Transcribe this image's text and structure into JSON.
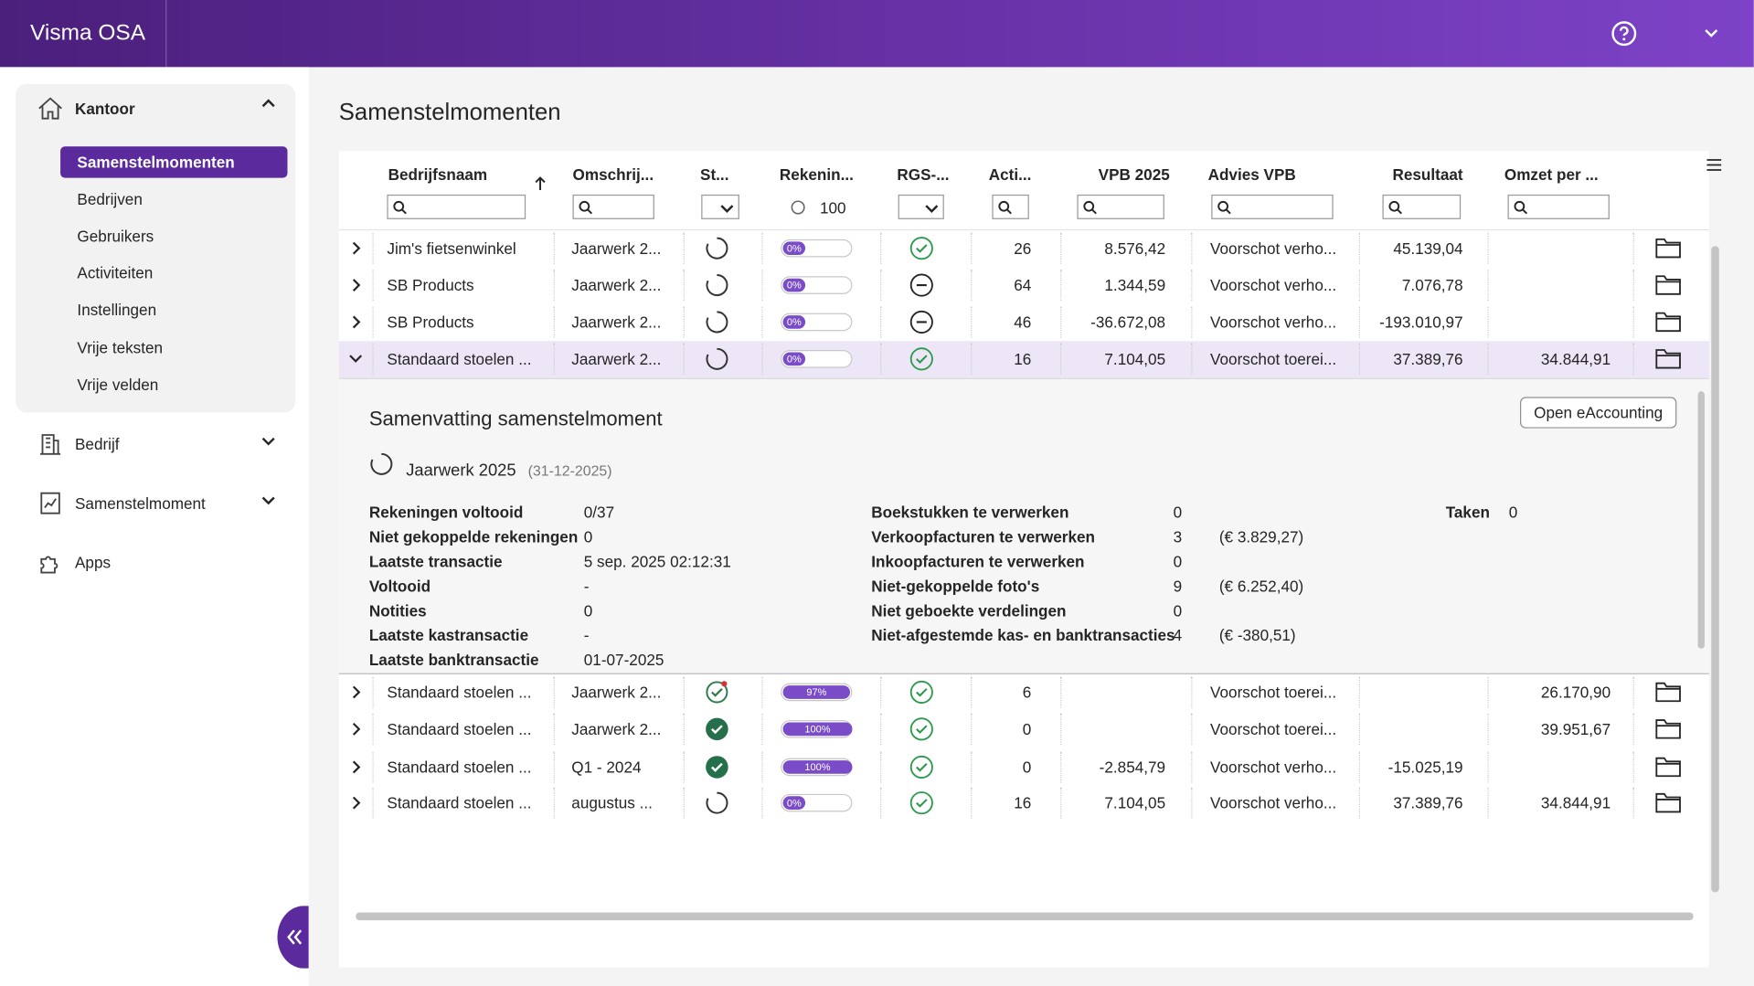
{
  "header": {
    "app_name": "Visma OSA"
  },
  "sidebar": {
    "kantoor": {
      "label": "Kantoor",
      "items": [
        "Samenstelmomenten",
        "Bedrijven",
        "Gebruikers",
        "Activiteiten",
        "Instellingen",
        "Vrije teksten",
        "Vrije velden"
      ]
    },
    "sections": [
      "Bedrijf",
      "Samenstelmoment",
      "Apps"
    ]
  },
  "page": {
    "title": "Samenstelmomenten"
  },
  "table": {
    "columns": [
      "Bedrijfsnaam",
      "Omschrij...",
      "St...",
      "Rekenin...",
      "RGS-...",
      "Acti...",
      "VPB 2025",
      "Advies VPB",
      "Resultaat",
      "Omzet per ..."
    ],
    "filter_rekeningen": "100",
    "rows": [
      {
        "name": "Jim's fietsenwinkel",
        "description": "Jaarwerk 2...",
        "progress": "0%",
        "activities": "26",
        "vpb": "8.576,42",
        "advies": "Voorschot verho...",
        "resultaat": "45.139,04"
      },
      {
        "name": "SB Products",
        "description": "Jaarwerk 2...",
        "progress": "0%",
        "activities": "64",
        "vpb": "1.344,59",
        "advies": "Voorschot verho...",
        "resultaat": "7.076,78"
      },
      {
        "name": "SB Products",
        "description": "Jaarwerk 2...",
        "progress": "0%",
        "activities": "46",
        "vpb": "-36.672,08",
        "advies": "Voorschot verho...",
        "resultaat": "-193.010,97"
      },
      {
        "name": "Standaard stoelen ...",
        "description": "Jaarwerk 2...",
        "progress": "0%",
        "activities": "16",
        "vpb": "7.104,05",
        "advies": "Voorschot toerei...",
        "resultaat": "37.389,76",
        "omzet": "34.844,91"
      },
      {
        "name": "Standaard stoelen ...",
        "description": "Jaarwerk 2...",
        "progress": "97%",
        "activities": "6",
        "advies": "Voorschot toerei...",
        "omzet": "26.170,90"
      },
      {
        "name": "Standaard stoelen ...",
        "description": "Jaarwerk 2...",
        "progress": "100%",
        "activities": "0",
        "advies": "Voorschot toerei...",
        "omzet": "39.951,67"
      },
      {
        "name": "Standaard stoelen ...",
        "description": "Q1 - 2024",
        "progress": "100%",
        "activities": "0",
        "vpb": "-2.854,79",
        "advies": "Voorschot verho...",
        "resultaat": "-15.025,19"
      },
      {
        "name": "Standaard stoelen ...",
        "description": "augustus ...",
        "progress": "0%",
        "activities": "16",
        "vpb": "7.104,05",
        "advies": "Voorschot verho...",
        "resultaat": "37.389,76",
        "omzet": "34.844,91"
      }
    ],
    "detail": {
      "title": "Samenvatting samenstelmoment",
      "button": "Open eAccounting",
      "period": "Jaarwerk 2025",
      "date": "(31-12-2025)",
      "left": [
        {
          "label": "Rekeningen voltooid",
          "value": "0/37"
        },
        {
          "label": "Niet gekoppelde rekeningen",
          "value": "0"
        },
        {
          "label": "Laatste transactie",
          "value": "5 sep. 2025 02:12:31"
        },
        {
          "label": "Voltooid",
          "value": "-"
        },
        {
          "label": "Notities",
          "value": "0"
        },
        {
          "label": "Laatste kastransactie",
          "value": "-"
        },
        {
          "label": "Laatste banktransactie",
          "value": "01-07-2025"
        }
      ],
      "middle": [
        {
          "label": "Boekstukken te verwerken",
          "value": "0"
        },
        {
          "label": "Verkoopfacturen te verwerken",
          "value": "3",
          "amount": "(€ 3.829,27)"
        },
        {
          "label": "Inkoopfacturen te verwerken",
          "value": "0"
        },
        {
          "label": "Niet-gekoppelde foto's",
          "value": "9",
          "amount": "(€ 6.252,40)"
        },
        {
          "label": "Niet geboekte verdelingen",
          "value": "0"
        },
        {
          "label": "Niet-afgestemde kas- en banktransacties",
          "value": "4",
          "amount": "(€ -380,51)"
        }
      ],
      "taken": {
        "label": "Taken",
        "value": "0"
      }
    }
  }
}
